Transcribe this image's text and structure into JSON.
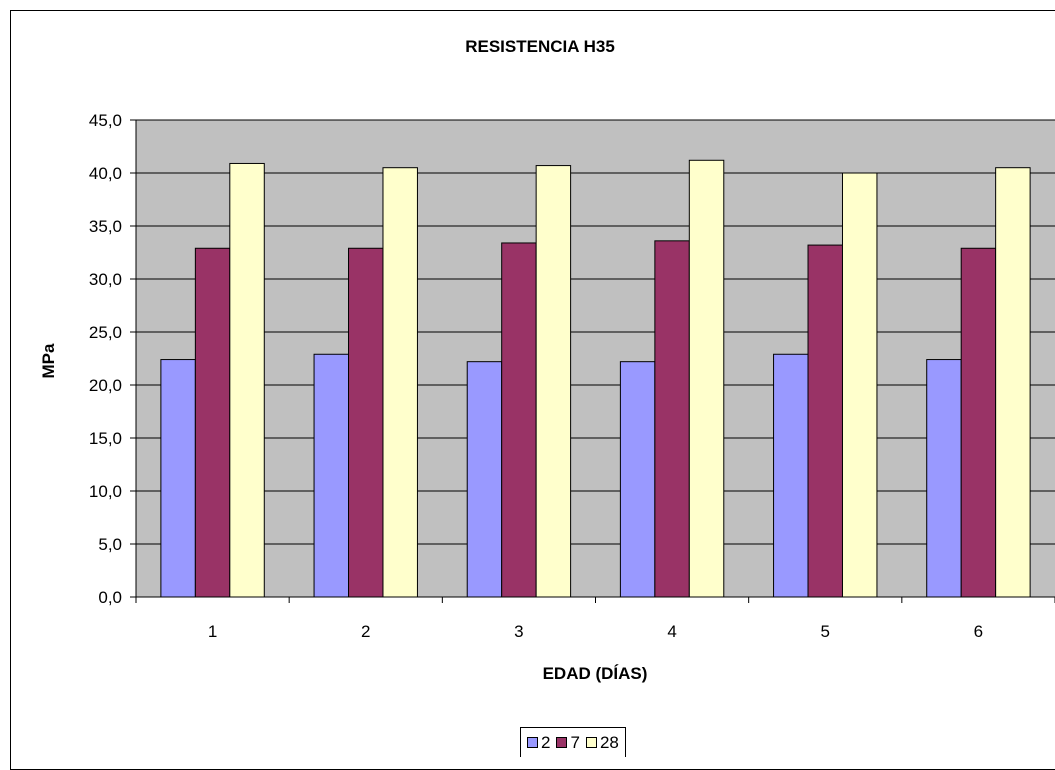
{
  "chart_data": {
    "type": "bar",
    "title": "RESISTENCIA H35",
    "xlabel": "EDAD (DÍAS)",
    "ylabel": "MPa",
    "categories": [
      "1",
      "2",
      "3",
      "4",
      "5",
      "6"
    ],
    "ylim": [
      0,
      45
    ],
    "ytick_step": 5,
    "ytick_labels": [
      "0,0",
      "5,0",
      "10,0",
      "15,0",
      "20,0",
      "25,0",
      "30,0",
      "35,0",
      "40,0",
      "45,0"
    ],
    "grid": "horizontal",
    "plot_background": "#c0c0c0",
    "legend_position": "bottom",
    "series": [
      {
        "name": "2",
        "color": "#9999ff",
        "values": [
          22.4,
          22.9,
          22.2,
          22.2,
          22.9,
          22.4
        ]
      },
      {
        "name": "7",
        "color": "#993366",
        "values": [
          32.9,
          32.9,
          33.4,
          33.6,
          33.2,
          32.9
        ]
      },
      {
        "name": "28",
        "color": "#ffffcc",
        "values": [
          40.9,
          40.5,
          40.7,
          41.2,
          40.0,
          40.5
        ]
      }
    ]
  }
}
